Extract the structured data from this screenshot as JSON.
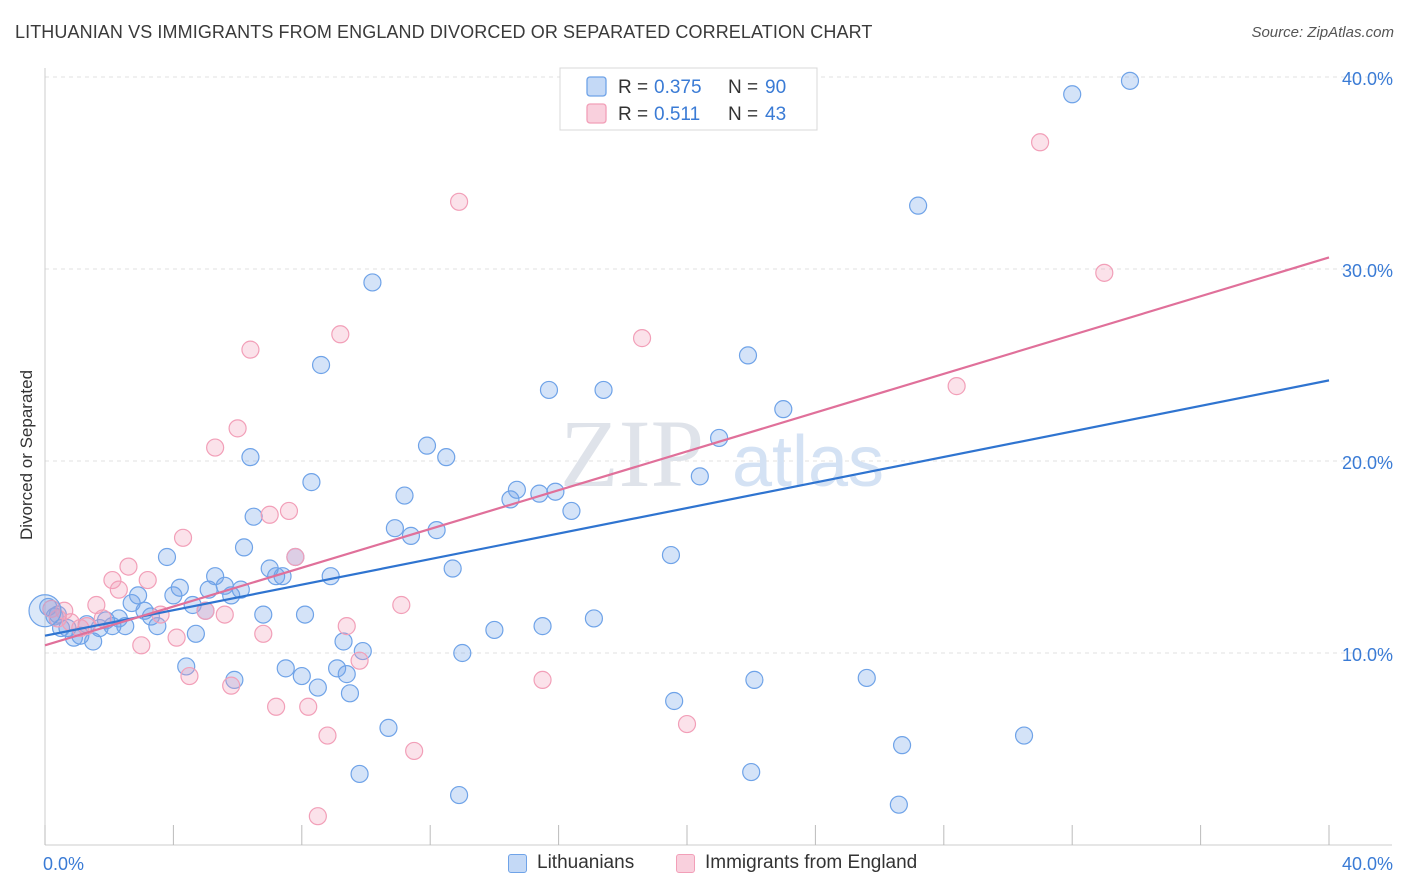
{
  "title": "LITHUANIAN VS IMMIGRANTS FROM ENGLAND DIVORCED OR SEPARATED CORRELATION CHART",
  "source": "Source: ZipAtlas.com",
  "watermark": {
    "zip": "ZIP",
    "atlas": "atlas"
  },
  "legend": {
    "rows": [
      {
        "r_label": "R = ",
        "r_value": "0.375",
        "n_label": "N = ",
        "n_value": "90",
        "color": "#6fa3e8"
      },
      {
        "r_label": "R = ",
        "r_value": "0.511",
        "n_label": "N = ",
        "n_value": "43",
        "color": "#f29fb8"
      }
    ]
  },
  "bottom_legend": [
    {
      "label": "Lithuanians",
      "color": "#6fa3e8"
    },
    {
      "label": "Immigrants from England",
      "color": "#f29fb8"
    }
  ],
  "chart_data": {
    "type": "scatter",
    "ylabel": "Divorced or Separated",
    "xlabel": "",
    "xlim": [
      0,
      40
    ],
    "ylim": [
      0,
      40
    ],
    "x_tick_labels": [
      "0.0%",
      "40.0%"
    ],
    "y_ticks": [
      10,
      20,
      30,
      40
    ],
    "y_tick_labels": [
      "10.0%",
      "20.0%",
      "30.0%",
      "40.0%"
    ],
    "grid": "horizontal dashed",
    "series": [
      {
        "name": "Lithuanians",
        "color": "#6fa3e8",
        "trend": {
          "x": [
            0,
            40
          ],
          "y": [
            10.9,
            24.2
          ]
        },
        "points": [
          [
            0.1,
            12.4
          ],
          [
            0.3,
            11.9
          ],
          [
            0.5,
            11.3
          ],
          [
            0.7,
            11.3
          ],
          [
            0.9,
            10.8
          ],
          [
            1.1,
            10.9
          ],
          [
            1.3,
            11.5
          ],
          [
            1.5,
            10.6
          ],
          [
            1.7,
            11.3
          ],
          [
            1.9,
            11.7
          ],
          [
            2.1,
            11.4
          ],
          [
            2.3,
            11.8
          ],
          [
            2.5,
            11.4
          ],
          [
            2.7,
            12.6
          ],
          [
            2.9,
            13.0
          ],
          [
            3.1,
            12.2
          ],
          [
            3.3,
            11.9
          ],
          [
            3.5,
            11.4
          ],
          [
            3.8,
            15.0
          ],
          [
            4.0,
            13.0
          ],
          [
            4.2,
            13.4
          ],
          [
            4.4,
            9.3
          ],
          [
            4.6,
            12.5
          ],
          [
            4.7,
            11.0
          ],
          [
            5.0,
            12.2
          ],
          [
            5.1,
            13.3
          ],
          [
            5.3,
            14.0
          ],
          [
            5.6,
            13.5
          ],
          [
            5.8,
            13.0
          ],
          [
            5.9,
            8.6
          ],
          [
            6.1,
            13.3
          ],
          [
            6.2,
            15.5
          ],
          [
            6.4,
            20.2
          ],
          [
            6.5,
            17.1
          ],
          [
            6.8,
            12.0
          ],
          [
            7.0,
            14.4
          ],
          [
            7.2,
            14.0
          ],
          [
            7.4,
            14.0
          ],
          [
            7.5,
            9.2
          ],
          [
            7.8,
            15.0
          ],
          [
            8.0,
            8.8
          ],
          [
            8.1,
            12.0
          ],
          [
            8.3,
            18.9
          ],
          [
            8.5,
            8.2
          ],
          [
            8.6,
            25.0
          ],
          [
            8.9,
            14.0
          ],
          [
            9.1,
            9.2
          ],
          [
            9.3,
            10.6
          ],
          [
            9.4,
            8.9
          ],
          [
            9.5,
            7.9
          ],
          [
            9.8,
            3.7
          ],
          [
            9.9,
            10.1
          ],
          [
            10.2,
            29.3
          ],
          [
            10.7,
            6.1
          ],
          [
            10.9,
            16.5
          ],
          [
            11.2,
            18.2
          ],
          [
            11.4,
            16.1
          ],
          [
            11.9,
            20.8
          ],
          [
            12.2,
            16.4
          ],
          [
            12.5,
            20.2
          ],
          [
            12.7,
            14.4
          ],
          [
            12.9,
            2.6
          ],
          [
            13.0,
            10.0
          ],
          [
            14.0,
            11.2
          ],
          [
            14.5,
            18.0
          ],
          [
            14.7,
            18.5
          ],
          [
            15.4,
            18.3
          ],
          [
            15.5,
            11.4
          ],
          [
            15.7,
            23.7
          ],
          [
            15.9,
            18.4
          ],
          [
            16.4,
            17.4
          ],
          [
            17.1,
            11.8
          ],
          [
            17.4,
            23.7
          ],
          [
            17.7,
            38.8
          ],
          [
            19.5,
            15.1
          ],
          [
            19.6,
            7.5
          ],
          [
            20.4,
            19.2
          ],
          [
            21.0,
            21.2
          ],
          [
            21.9,
            25.5
          ],
          [
            22.1,
            8.6
          ],
          [
            23.0,
            22.7
          ],
          [
            25.6,
            8.7
          ],
          [
            26.7,
            5.2
          ],
          [
            27.2,
            33.3
          ],
          [
            26.6,
            2.1
          ],
          [
            30.5,
            5.7
          ],
          [
            32.0,
            39.1
          ],
          [
            33.8,
            39.8
          ],
          [
            22.0,
            3.8
          ],
          [
            0.4,
            12.0
          ]
        ]
      },
      {
        "name": "Immigrants from England",
        "color": "#f29fb8",
        "trend": {
          "x": [
            0,
            40
          ],
          "y": [
            10.4,
            30.6
          ]
        },
        "points": [
          [
            0.2,
            12.3
          ],
          [
            0.4,
            11.8
          ],
          [
            0.6,
            12.2
          ],
          [
            0.8,
            11.6
          ],
          [
            1.1,
            11.3
          ],
          [
            1.3,
            11.4
          ],
          [
            1.6,
            12.5
          ],
          [
            1.8,
            11.8
          ],
          [
            2.1,
            13.8
          ],
          [
            2.3,
            13.3
          ],
          [
            2.6,
            14.5
          ],
          [
            3.0,
            10.4
          ],
          [
            3.2,
            13.8
          ],
          [
            3.6,
            12.0
          ],
          [
            4.1,
            10.8
          ],
          [
            4.3,
            16.0
          ],
          [
            4.5,
            8.8
          ],
          [
            5.0,
            12.2
          ],
          [
            5.3,
            20.7
          ],
          [
            5.6,
            12.0
          ],
          [
            5.8,
            8.3
          ],
          [
            6.0,
            21.7
          ],
          [
            6.4,
            25.8
          ],
          [
            6.8,
            11.0
          ],
          [
            7.0,
            17.2
          ],
          [
            7.2,
            7.2
          ],
          [
            7.6,
            17.4
          ],
          [
            7.8,
            15.0
          ],
          [
            8.2,
            7.2
          ],
          [
            8.5,
            1.5
          ],
          [
            8.8,
            5.7
          ],
          [
            9.2,
            26.6
          ],
          [
            9.4,
            11.4
          ],
          [
            9.8,
            9.6
          ],
          [
            11.1,
            12.5
          ],
          [
            11.5,
            4.9
          ],
          [
            12.9,
            33.5
          ],
          [
            15.5,
            8.6
          ],
          [
            18.6,
            26.4
          ],
          [
            20.0,
            6.3
          ],
          [
            28.4,
            23.9
          ],
          [
            31.0,
            36.6
          ],
          [
            33.0,
            29.8
          ]
        ]
      }
    ]
  }
}
